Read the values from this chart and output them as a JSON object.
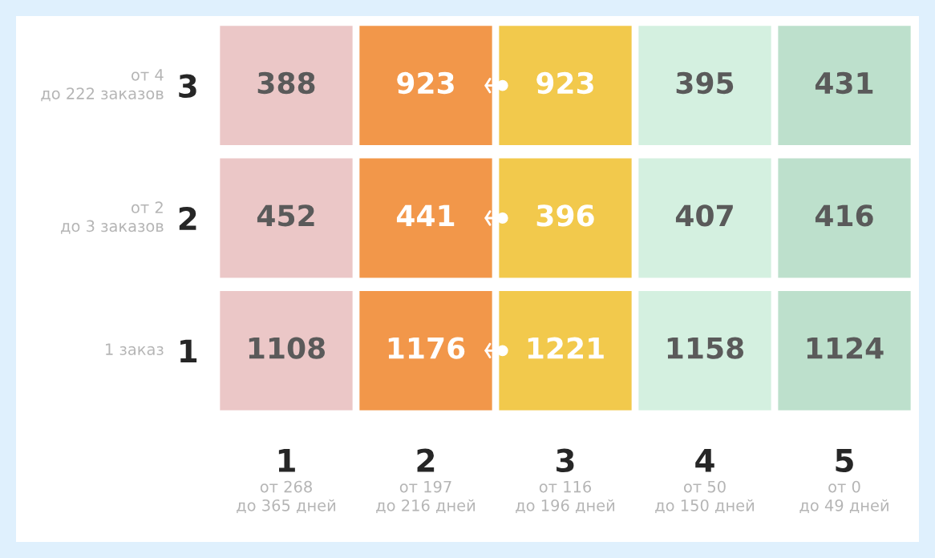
{
  "chart_data": {
    "type": "heatmap",
    "categories": [
      "1\nот 268\nдо 365 дней",
      "2\nот 197\nдо 216 дней",
      "3\nот 116\nдо 196 дней",
      "4\nот 50\nдо 150 дней",
      "5\nот 0\nдо 49 дней"
    ],
    "y_categories": [
      "3",
      "2",
      "1"
    ],
    "y2_categories": [
      "от 4\nдо 222 заказов",
      "от 2\nдо 3 заказов",
      "1 заказ"
    ],
    "cells": [
      [
        388,
        923,
        923,
        395,
        431
      ],
      [
        452,
        441,
        396,
        407,
        416
      ],
      [
        1108,
        1176,
        1221,
        1158,
        1124
      ]
    ],
    "colors": [
      "#ebc7c7",
      "#f2974a",
      "#f2c94c",
      "#d4f0e0",
      "#bde0cc"
    ],
    "data_labels": true
  }
}
